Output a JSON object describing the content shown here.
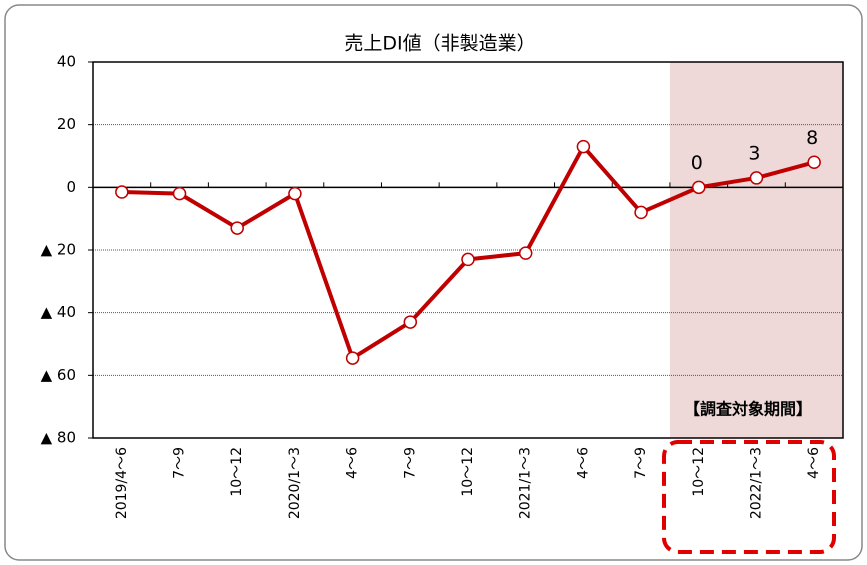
{
  "chart_data": {
    "type": "line",
    "title": "売上DI値（非製造業）",
    "categories": [
      "2019/4～6",
      "7～9",
      "10～12",
      "2020/1～3",
      "4～6",
      "7～9",
      "10～12",
      "2021/1～3",
      "4～6",
      "7～9",
      "10～12",
      "2022/1～3",
      "4～6"
    ],
    "series": [
      {
        "color": "#c00000",
        "values": [
          -1.5,
          -2,
          -13,
          -2,
          -54.5,
          -43,
          -23,
          -21,
          13,
          -8,
          0,
          3,
          8
        ]
      }
    ],
    "ylim": [
      -80,
      40
    ],
    "yticks": [
      {
        "value": -80,
        "label": "▲ 80"
      },
      {
        "value": -60,
        "label": "▲ 60"
      },
      {
        "value": -40,
        "label": "▲ 40"
      },
      {
        "value": -20,
        "label": "▲ 20"
      },
      0,
      20,
      40
    ],
    "grid": true,
    "annotation": "【調査対象期間】"
  }
}
